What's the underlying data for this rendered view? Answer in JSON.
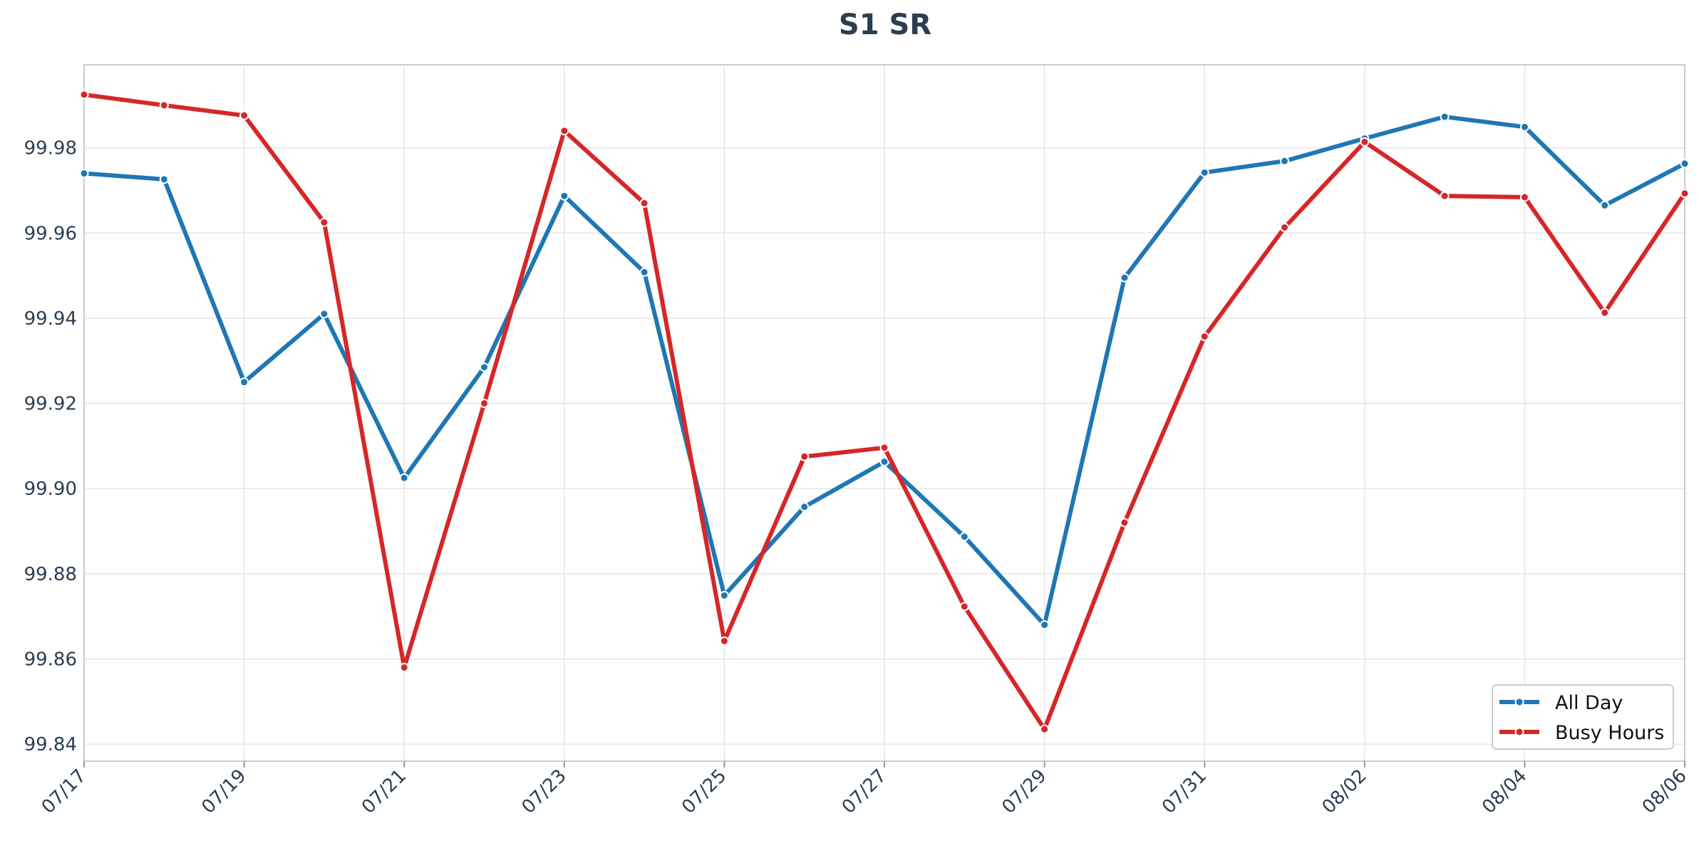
{
  "chart_data": {
    "type": "line",
    "title": "S1 SR",
    "xlabel": "",
    "ylabel": "",
    "x": [
      "07/17",
      "07/18",
      "07/19",
      "07/20",
      "07/21",
      "07/22",
      "07/23",
      "07/24",
      "07/25",
      "07/26",
      "07/27",
      "07/28",
      "07/29",
      "07/30",
      "07/31",
      "08/01",
      "08/02",
      "08/03",
      "08/04",
      "08/05",
      "08/06"
    ],
    "x_ticks": [
      "07/17",
      "07/19",
      "07/21",
      "07/23",
      "07/25",
      "07/27",
      "07/29",
      "07/31",
      "08/02",
      "08/04",
      "08/06"
    ],
    "y_ticks": [
      "99.84",
      "99.86",
      "99.88",
      "99.90",
      "99.92",
      "99.94",
      "99.96",
      "99.98"
    ],
    "ylim": [
      99.836,
      99.9995
    ],
    "grid": true,
    "legend_position": "bottom-right",
    "series": [
      {
        "name": "All Day",
        "color": "#1f77b4",
        "values": [
          99.974,
          99.9726,
          99.925,
          99.941,
          99.9025,
          99.9285,
          99.9687,
          99.9508,
          99.8749,
          99.8957,
          99.9063,
          99.8887,
          99.868,
          99.9495,
          99.9742,
          99.9769,
          99.9822,
          99.9873,
          99.9849,
          99.9665,
          99.9763
        ]
      },
      {
        "name": "Busy Hours",
        "color": "#d62728",
        "values": [
          99.9925,
          99.99,
          99.9876,
          99.9625,
          99.858,
          99.92,
          99.984,
          99.967,
          99.8642,
          99.9075,
          99.9096,
          99.8723,
          99.8435,
          99.892,
          99.9357,
          99.9613,
          99.9814,
          99.9687,
          99.9684,
          99.9413,
          99.9693
        ]
      }
    ]
  }
}
